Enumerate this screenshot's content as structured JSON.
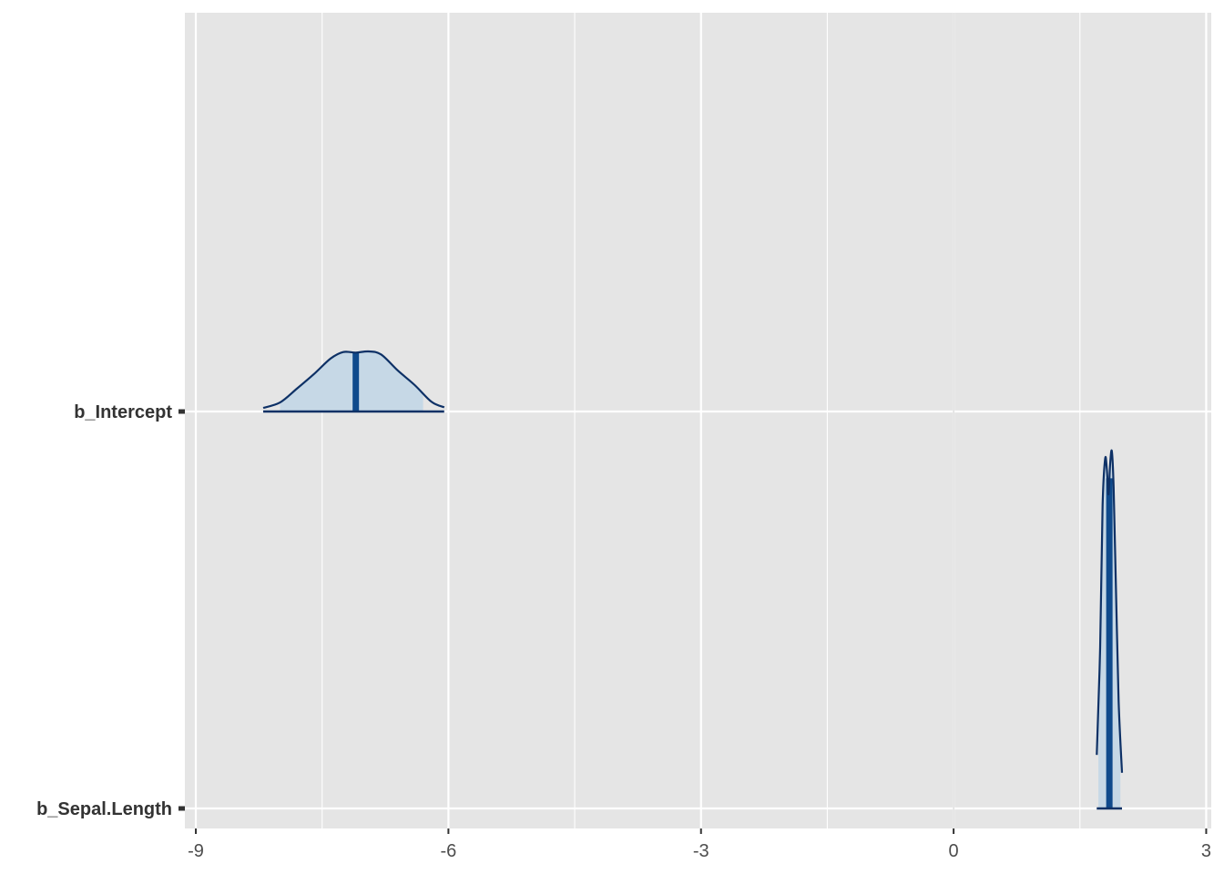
{
  "chart_data": {
    "type": "area",
    "subtype": "posterior-density-ridges",
    "title": "",
    "xlabel": "",
    "ylabel": "",
    "xlim": [
      -9.13,
      3.06
    ],
    "x_ticks": [
      -9,
      -6,
      -3,
      0,
      3
    ],
    "x_tick_labels": [
      "-9",
      "-6",
      "-3",
      "0",
      "3"
    ],
    "zero_reference_line": true,
    "grid": true,
    "legend": "none",
    "colors": {
      "panel_background": "#e5e5e5",
      "grid": "#ffffff",
      "zero_line": "#d9d9d9",
      "density_fill": "#c6d8e6",
      "density_outline": "#0e3166",
      "median_line": "#0f4a8c",
      "tick_label": "#4d4d4d",
      "axis_label": "#333333"
    },
    "series": [
      {
        "name": "b_Intercept",
        "median": -7.1,
        "inner_interval": [
          -8.0,
          -6.3
        ],
        "outer_interval": [
          -8.2,
          -6.05
        ],
        "density_x": [
          -8.2,
          -8.0,
          -7.8,
          -7.6,
          -7.4,
          -7.25,
          -7.1,
          -6.95,
          -6.8,
          -6.6,
          -6.4,
          -6.2,
          -6.05
        ],
        "density_height": [
          0.06,
          0.15,
          0.38,
          0.62,
          0.88,
          0.99,
          0.98,
          1.0,
          0.95,
          0.68,
          0.44,
          0.16,
          0.07
        ]
      },
      {
        "name": "b_Sepal.Length",
        "median": 1.85,
        "inner_interval": [
          1.72,
          1.98
        ],
        "outer_interval": [
          1.7,
          2.0
        ],
        "density_x": [
          1.7,
          1.74,
          1.77,
          1.8,
          1.82,
          1.84,
          1.86,
          1.88,
          1.9,
          1.93,
          1.96,
          2.0
        ],
        "density_height": [
          0.15,
          0.45,
          0.85,
          0.98,
          0.95,
          0.88,
          0.97,
          1.0,
          0.9,
          0.6,
          0.3,
          0.1
        ]
      }
    ]
  }
}
